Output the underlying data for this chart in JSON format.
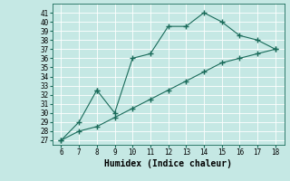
{
  "title": "",
  "xlabel": "Humidex (Indice chaleur)",
  "ylabel": "",
  "background_color": "#c5e8e4",
  "grid_color": "#ffffff",
  "line_color": "#1a6b5a",
  "x_line1": [
    6,
    7,
    8,
    8,
    9,
    10,
    11,
    12,
    13,
    14,
    15,
    16,
    17,
    18
  ],
  "y_line1": [
    27,
    29,
    32.5,
    32.5,
    30,
    36,
    36.5,
    39.5,
    39.5,
    41,
    40,
    38.5,
    38,
    37
  ],
  "x_line2": [
    6,
    7,
    8,
    9,
    10,
    11,
    12,
    13,
    14,
    15,
    16,
    17,
    18
  ],
  "y_line2": [
    27,
    28,
    28.5,
    29.5,
    30.5,
    31.5,
    32.5,
    33.5,
    34.5,
    35.5,
    36.0,
    36.5,
    37
  ],
  "xlim": [
    5.5,
    18.5
  ],
  "ylim": [
    26.5,
    42
  ],
  "xticks": [
    6,
    7,
    8,
    9,
    10,
    11,
    12,
    13,
    14,
    15,
    16,
    17,
    18
  ],
  "yticks": [
    27,
    28,
    29,
    30,
    31,
    32,
    33,
    34,
    35,
    36,
    37,
    38,
    39,
    40,
    41
  ],
  "marker": "+",
  "markersize": 4,
  "linewidth": 0.8,
  "xlabel_fontsize": 7,
  "tick_fontsize": 5.5
}
